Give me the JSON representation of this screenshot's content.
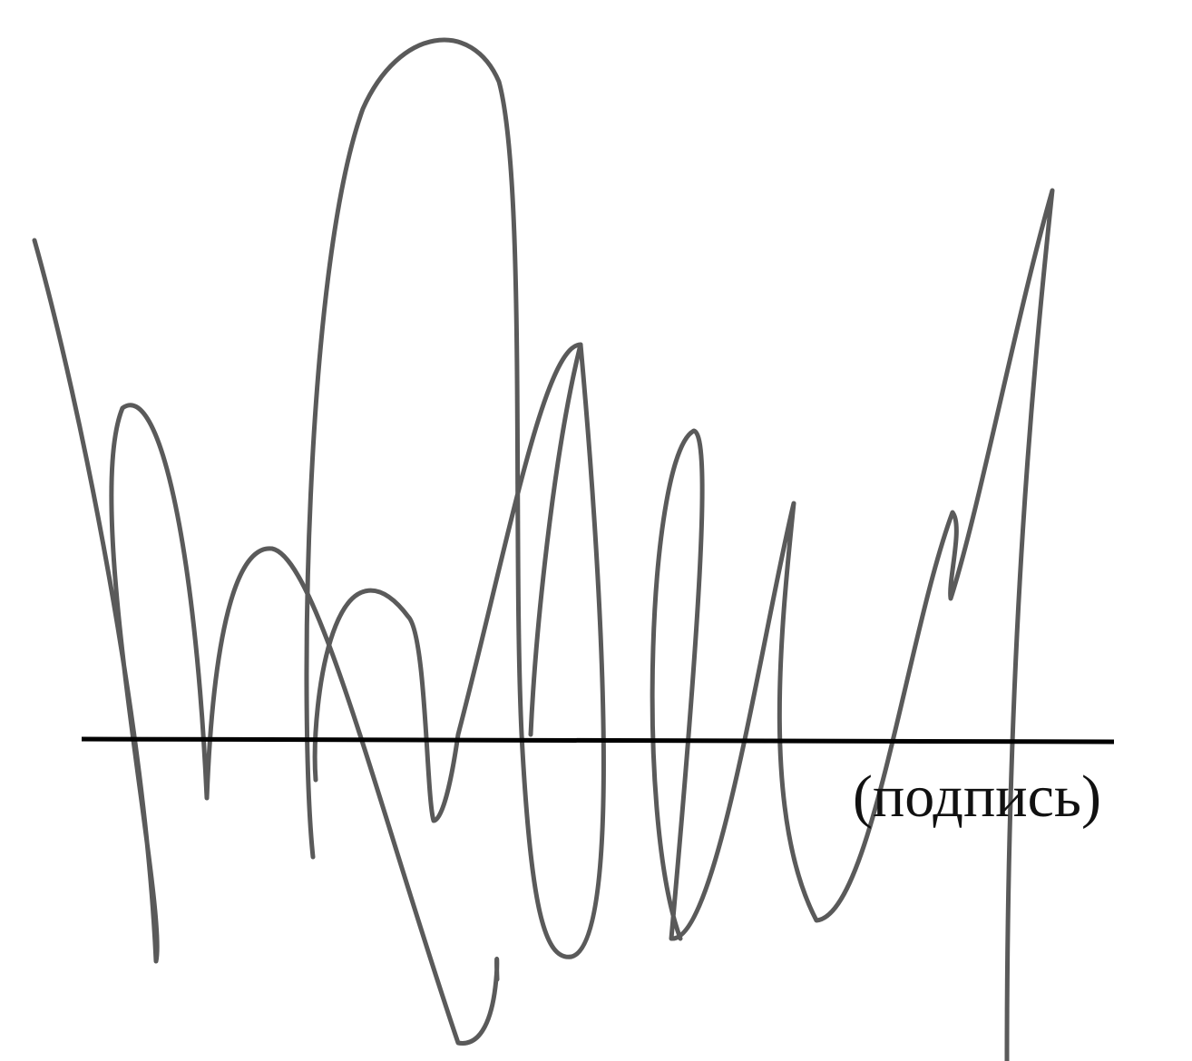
{
  "caption": "(подпись)"
}
